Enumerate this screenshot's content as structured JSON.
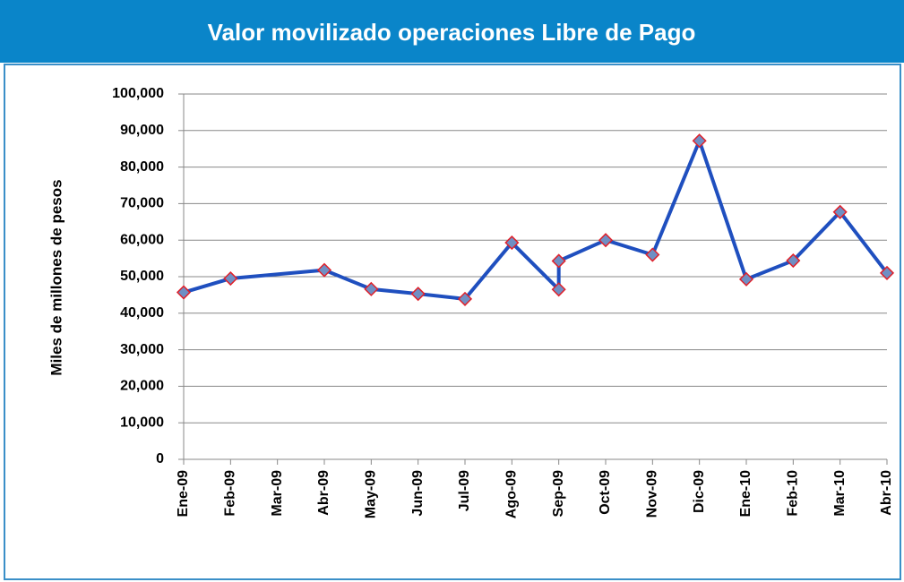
{
  "chart_data": {
    "type": "line",
    "title": "Valor movilizado operaciones Libre de Pago",
    "y_label": "Miles de millones de pesos",
    "x": [
      0,
      1,
      3,
      4,
      5,
      6,
      7,
      8,
      8,
      9,
      10,
      11,
      12,
      13,
      14,
      15
    ],
    "series": [
      {
        "name": "Valor movilizado",
        "color": "#1f4fbf",
        "marker_fill": "#6f8fc4",
        "marker_edge": "#e0202a",
        "values": [
          45700,
          49500,
          51800,
          46600,
          45300,
          43900,
          59300,
          46500,
          54300,
          60000,
          56000,
          87200,
          49300,
          54400,
          67700,
          51000
        ]
      }
    ],
    "xlim": [
      0,
      15
    ],
    "xticks": [
      {
        "value": 0,
        "label": "Ene-09"
      },
      {
        "value": 1,
        "label": "Feb-09"
      },
      {
        "value": 2,
        "label": "Mar-09"
      },
      {
        "value": 3,
        "label": "Abr-09"
      },
      {
        "value": 4,
        "label": "May-09"
      },
      {
        "value": 5,
        "label": "Jun-09"
      },
      {
        "value": 6,
        "label": "Jul-09"
      },
      {
        "value": 7,
        "label": "Ago-09"
      },
      {
        "value": 8,
        "label": "Sep-09"
      },
      {
        "value": 9,
        "label": "Oct-09"
      },
      {
        "value": 10,
        "label": "Nov-09"
      },
      {
        "value": 11,
        "label": "Dic-09"
      },
      {
        "value": 12,
        "label": "Ene-10"
      },
      {
        "value": 13,
        "label": "Feb-10"
      },
      {
        "value": 14,
        "label": "Mar-10"
      },
      {
        "value": 15,
        "label": "Abr-10"
      }
    ],
    "ylim": [
      0,
      100000
    ],
    "yticks": [
      0,
      {
        "value": 10000,
        "label": "10,000"
      },
      {
        "value": 20000,
        "label": "20,000"
      },
      {
        "value": 30000,
        "label": "30,000"
      },
      {
        "value": 40000,
        "label": "40,000"
      },
      {
        "value": 50000,
        "label": "50,000"
      },
      {
        "value": 60000,
        "label": "60,000"
      },
      {
        "value": 70000,
        "label": "70,000"
      },
      {
        "value": 80000,
        "label": "80,000"
      },
      {
        "value": 90000,
        "label": "90,000"
      },
      {
        "value": 100000,
        "label": "100,000"
      }
    ],
    "grid": true,
    "title_color": "#0a85c9"
  }
}
